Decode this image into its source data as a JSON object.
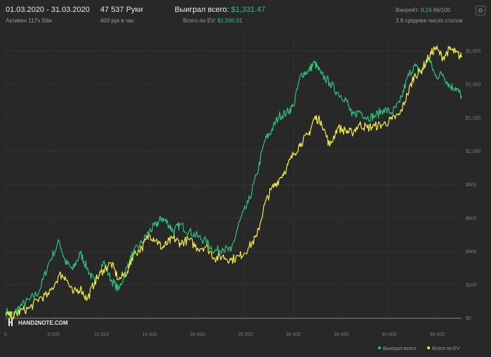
{
  "header": {
    "period": "01.03.2020 - 31.03.2020",
    "active_label": "Активен 117ч 59м",
    "hands": "47 537 Руки",
    "hands_per_hour": "403 рук в час",
    "won_label": "Выиграл всего:",
    "won_value": "$1,331.47",
    "ev_label": "Всего по EV:",
    "ev_value": "$1,560.91",
    "winrate_label": "Винрейт:",
    "winrate_value": "9.24",
    "winrate_rest": "66/100",
    "tables_avg": "3.8 среднее число столов",
    "settings_icon": "⚙"
  },
  "logo": {
    "text": "HAND2NOTE.COM"
  },
  "colors": {
    "background": "#282828",
    "won": "#2ec27e",
    "ev": "#f2ee4a",
    "grid": "#3a3a3a",
    "zero": "#8c8c8c"
  },
  "chart_data": {
    "type": "line",
    "x_ticks": [
      "0",
      "5 000",
      "10 000",
      "15 000",
      "20 000",
      "25 000",
      "30 000",
      "35 000",
      "40 000",
      "45 000"
    ],
    "y_ticks": [
      "$0",
      "$200",
      "$400",
      "$600",
      "$800",
      "$1,000",
      "$1,200",
      "$1,400",
      "$1,600"
    ],
    "xlim": [
      0,
      47537
    ],
    "ylim": [
      -60,
      1720
    ],
    "grid": true,
    "legend_position": "bottom-right",
    "series": [
      {
        "name": "Выиграл всего",
        "color": "#2ec27e",
        "points": [
          [
            0,
            40
          ],
          [
            800,
            20
          ],
          [
            1500,
            70
          ],
          [
            2500,
            110
          ],
          [
            3500,
            160
          ],
          [
            4500,
            330
          ],
          [
            5600,
            460
          ],
          [
            6200,
            340
          ],
          [
            7000,
            290
          ],
          [
            7800,
            390
          ],
          [
            8500,
            300
          ],
          [
            9300,
            210
          ],
          [
            10200,
            340
          ],
          [
            11000,
            230
          ],
          [
            11800,
            170
          ],
          [
            12700,
            310
          ],
          [
            13300,
            390
          ],
          [
            14200,
            450
          ],
          [
            15000,
            520
          ],
          [
            15700,
            560
          ],
          [
            16300,
            600
          ],
          [
            16900,
            570
          ],
          [
            17500,
            520
          ],
          [
            18200,
            560
          ],
          [
            19100,
            520
          ],
          [
            20000,
            490
          ],
          [
            20900,
            460
          ],
          [
            21800,
            400
          ],
          [
            22600,
            420
          ],
          [
            23500,
            400
          ],
          [
            24400,
            580
          ],
          [
            25300,
            690
          ],
          [
            26200,
            860
          ],
          [
            27000,
            1060
          ],
          [
            27700,
            1120
          ],
          [
            28500,
            1210
          ],
          [
            29300,
            1230
          ],
          [
            30000,
            1270
          ],
          [
            30800,
            1460
          ],
          [
            31600,
            1480
          ],
          [
            32200,
            1530
          ],
          [
            32900,
            1460
          ],
          [
            33800,
            1410
          ],
          [
            34600,
            1350
          ],
          [
            35500,
            1310
          ],
          [
            36100,
            1210
          ],
          [
            36900,
            1240
          ],
          [
            37700,
            1200
          ],
          [
            38500,
            1210
          ],
          [
            39400,
            1250
          ],
          [
            40300,
            1230
          ],
          [
            41100,
            1290
          ],
          [
            41900,
            1440
          ],
          [
            42600,
            1510
          ],
          [
            43300,
            1470
          ],
          [
            44100,
            1560
          ],
          [
            44800,
            1450
          ],
          [
            45600,
            1460
          ],
          [
            46300,
            1390
          ],
          [
            46900,
            1380
          ],
          [
            47537,
            1331
          ]
        ]
      },
      {
        "name": "Всего по EV",
        "color": "#f2ee4a",
        "points": [
          [
            0,
            20
          ],
          [
            800,
            10
          ],
          [
            1500,
            40
          ],
          [
            2500,
            60
          ],
          [
            3500,
            120
          ],
          [
            4500,
            140
          ],
          [
            5600,
            260
          ],
          [
            6200,
            250
          ],
          [
            7000,
            150
          ],
          [
            7800,
            180
          ],
          [
            8500,
            110
          ],
          [
            9300,
            220
          ],
          [
            10200,
            290
          ],
          [
            11000,
            330
          ],
          [
            11800,
            230
          ],
          [
            12700,
            280
          ],
          [
            13300,
            380
          ],
          [
            14200,
            420
          ],
          [
            15000,
            500
          ],
          [
            15700,
            470
          ],
          [
            16300,
            420
          ],
          [
            16900,
            450
          ],
          [
            17500,
            480
          ],
          [
            18200,
            450
          ],
          [
            19100,
            470
          ],
          [
            20000,
            420
          ],
          [
            20900,
            430
          ],
          [
            21800,
            360
          ],
          [
            22600,
            370
          ],
          [
            23500,
            350
          ],
          [
            24400,
            370
          ],
          [
            25300,
            420
          ],
          [
            26200,
            490
          ],
          [
            27000,
            680
          ],
          [
            27700,
            770
          ],
          [
            28500,
            830
          ],
          [
            29300,
            900
          ],
          [
            30000,
            980
          ],
          [
            30800,
            1050
          ],
          [
            31600,
            1100
          ],
          [
            32200,
            1200
          ],
          [
            32900,
            1180
          ],
          [
            33800,
            1030
          ],
          [
            34600,
            1140
          ],
          [
            35500,
            1120
          ],
          [
            36100,
            1110
          ],
          [
            36900,
            1160
          ],
          [
            37700,
            1140
          ],
          [
            38500,
            1150
          ],
          [
            39400,
            1160
          ],
          [
            40300,
            1190
          ],
          [
            41100,
            1220
          ],
          [
            41900,
            1340
          ],
          [
            42600,
            1450
          ],
          [
            43300,
            1480
          ],
          [
            44100,
            1560
          ],
          [
            44800,
            1620
          ],
          [
            45600,
            1560
          ],
          [
            46300,
            1610
          ],
          [
            46900,
            1590
          ],
          [
            47537,
            1561
          ]
        ]
      }
    ]
  }
}
